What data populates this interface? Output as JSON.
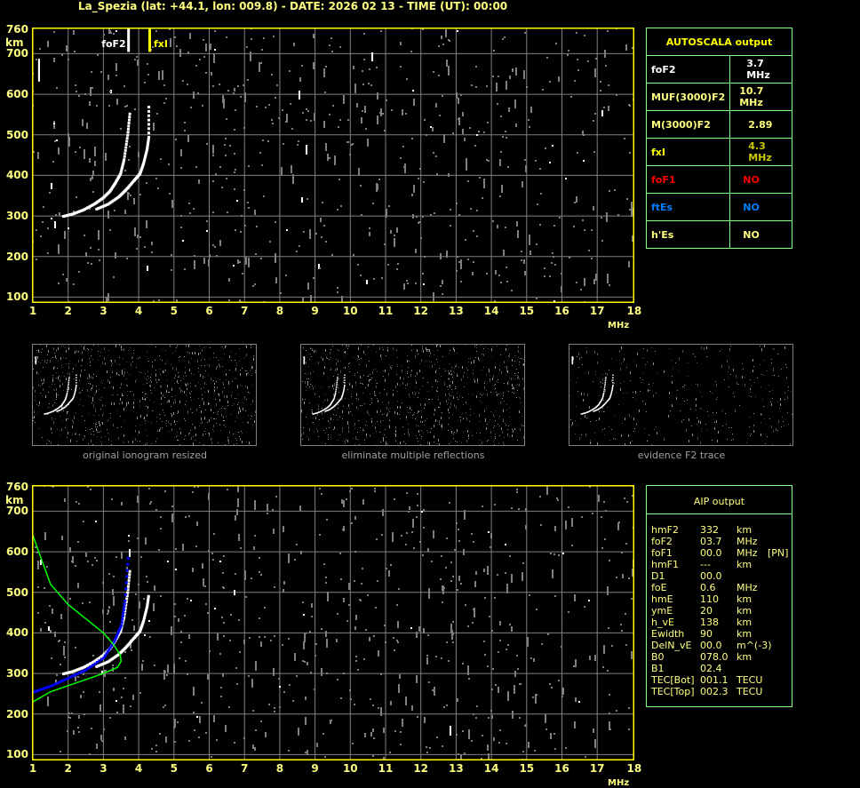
{
  "title": "La_Spezia (lat: +44.1, lon: 009.8) - DATE: 2026 02 13 - TIME (UT): 00:00",
  "colors": {
    "axis": "#ffff00",
    "label": "#ffff80",
    "grid": "#808080",
    "trace": "#ffffff",
    "noise": "#808080",
    "table_border": "#80ff80",
    "fxI": "#c8c800",
    "foF1": "#ff0000",
    "ftEs": "#0080ff",
    "profile": "#00ff00",
    "aip_trace": "#0000ff"
  },
  "axes": {
    "y_ticks": [
      "760",
      "700",
      "600",
      "500",
      "400",
      "300",
      "200",
      "100"
    ],
    "y_unit": "km",
    "x_ticks": [
      "1",
      "2",
      "3",
      "4",
      "5",
      "6",
      "7",
      "8",
      "9",
      "10",
      "11",
      "12",
      "13",
      "14",
      "15",
      "16",
      "17",
      "18"
    ],
    "x_unit": "MHz"
  },
  "markers": {
    "foF2_label": "foF2",
    "fxI_label": "fxI"
  },
  "thumbnails": [
    {
      "caption": "original ionogram resized"
    },
    {
      "caption": "eliminate multiple reflections"
    },
    {
      "caption": "evidence F2 trace"
    }
  ],
  "autoscala": {
    "header": "AUTOSCALA output",
    "rows": [
      {
        "label": "foF2",
        "value": "3.7 MHz"
      },
      {
        "label": "MUF(3000)F2",
        "value": "10.7 MHz"
      },
      {
        "label": "M(3000)F2",
        "value": "2.89"
      },
      {
        "label": "fxI",
        "value": "4.3 MHz"
      },
      {
        "label": "foF1",
        "value": "NO"
      },
      {
        "label": "ftEs",
        "value": "NO"
      },
      {
        "label": "h'Es",
        "value": "NO"
      }
    ]
  },
  "aip": {
    "header": "AIP output",
    "rows": [
      {
        "name": "hmF2",
        "value": "332",
        "unit": "km",
        "extra": ""
      },
      {
        "name": "foF2",
        "value": "03.7",
        "unit": "MHz",
        "extra": ""
      },
      {
        "name": "foF1",
        "value": "00.0",
        "unit": "MHz",
        "extra": "[PN]"
      },
      {
        "name": "hmF1",
        "value": "---",
        "unit": "km",
        "extra": ""
      },
      {
        "name": "D1",
        "value": "00.0",
        "unit": "",
        "extra": ""
      },
      {
        "name": "foE",
        "value": "0.6",
        "unit": "MHz",
        "extra": ""
      },
      {
        "name": "hmE",
        "value": "110",
        "unit": "km",
        "extra": ""
      },
      {
        "name": "ymE",
        "value": "20",
        "unit": "km",
        "extra": ""
      },
      {
        "name": "h_vE",
        "value": "138",
        "unit": "km",
        "extra": ""
      },
      {
        "name": "Ewidth",
        "value": "90",
        "unit": "km",
        "extra": ""
      },
      {
        "name": "DelN_vE",
        "value": "00.0",
        "unit": "m^(-3)",
        "extra": ""
      },
      {
        "name": "B0",
        "value": "078.0",
        "unit": "km",
        "extra": ""
      },
      {
        "name": "B1",
        "value": "02.4",
        "unit": "",
        "extra": ""
      },
      {
        "name": "TEC[Bot]",
        "value": "001.1",
        "unit": "TECU",
        "extra": ""
      },
      {
        "name": "TEC[Top]",
        "value": "002.3",
        "unit": "TECU",
        "extra": ""
      }
    ]
  },
  "chart_data": [
    {
      "type": "scatter",
      "title": "",
      "xlabel": "MHz",
      "ylabel": "km",
      "xlim": [
        1,
        18
      ],
      "ylim": [
        100,
        760
      ],
      "grid": true,
      "series": [
        {
          "name": "",
          "role": "O-trace",
          "x": [
            1.83,
            2.1,
            2.4,
            2.7,
            2.95,
            3.15,
            3.3,
            3.45,
            3.55,
            3.65,
            3.72
          ],
          "y": [
            300,
            306,
            316,
            330,
            345,
            362,
            382,
            405,
            440,
            500,
            560
          ]
        },
        {
          "name": "",
          "role": "X-trace",
          "x": [
            2.77,
            3.1,
            3.4,
            3.6,
            3.83,
            4.0,
            4.1,
            4.2,
            4.25,
            4.25
          ],
          "y": [
            318,
            330,
            348,
            365,
            388,
            405,
            430,
            465,
            495,
            580
          ]
        },
        {
          "name": "",
          "role": "multiple reflection",
          "x": [
            1.15,
            1.15,
            1.15,
            1.15
          ],
          "y": [
            640,
            655,
            670,
            690
          ]
        }
      ],
      "vlines": [
        {
          "label": "foF2",
          "x": 3.7
        },
        {
          "label": "fxI",
          "x": 4.3
        }
      ]
    },
    {
      "type": "scatter",
      "title": "",
      "xlabel": "MHz",
      "ylabel": "km",
      "xlim": [
        1,
        18
      ],
      "ylim": [
        100,
        760
      ],
      "grid": true,
      "series": [
        {
          "name": "",
          "role": "O-trace",
          "x": [
            1.83,
            2.1,
            2.4,
            2.7,
            2.95,
            3.15,
            3.3,
            3.45,
            3.55,
            3.65,
            3.72
          ],
          "y": [
            300,
            306,
            316,
            330,
            345,
            362,
            382,
            405,
            440,
            500,
            560
          ]
        },
        {
          "name": "",
          "role": "X-trace",
          "x": [
            2.77,
            3.1,
            3.4,
            3.6,
            3.83,
            4.0,
            4.1,
            4.2,
            4.25
          ],
          "y": [
            318,
            330,
            348,
            365,
            388,
            405,
            430,
            465,
            495
          ]
        },
        {
          "name": "",
          "role": "AIP fitted trace",
          "x": [
            1.0,
            1.5,
            2.0,
            2.5,
            3.0,
            3.3,
            3.5,
            3.6,
            3.7
          ],
          "y": [
            255,
            270,
            290,
            310,
            340,
            380,
            420,
            480,
            600
          ]
        },
        {
          "name": "",
          "role": "AIP electron density profile",
          "x": [
            1.0,
            1.5,
            2.0,
            2.5,
            3.0,
            3.3,
            3.48,
            3.5,
            3.4,
            3.0,
            2.5,
            2.0,
            1.5,
            1.0
          ],
          "y": [
            640,
            520,
            470,
            435,
            400,
            370,
            345,
            330,
            315,
            300,
            285,
            270,
            255,
            230
          ]
        }
      ]
    }
  ]
}
